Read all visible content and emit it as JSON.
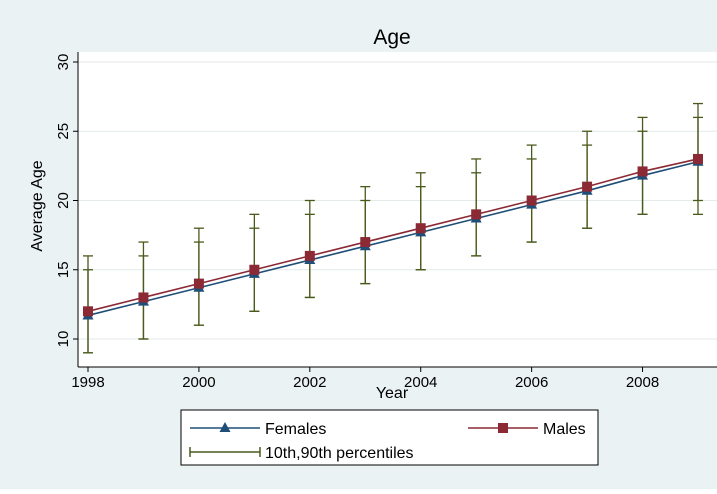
{
  "chart_data": {
    "type": "line",
    "title": "Age",
    "xlabel": "Year",
    "ylabel": "Average Age",
    "xlim": [
      1998,
      2009
    ],
    "ylim": [
      10,
      30
    ],
    "x": [
      1998,
      1999,
      2000,
      2001,
      2002,
      2003,
      2004,
      2005,
      2006,
      2007,
      2008,
      2009
    ],
    "x_ticks": [
      1998,
      2000,
      2002,
      2004,
      2006,
      2008
    ],
    "y_ticks": [
      10,
      15,
      20,
      25,
      30
    ],
    "grid": true,
    "legend_position": "bottom",
    "series": [
      {
        "name": "Females",
        "marker": "triangle",
        "color": "#1f4e79",
        "values": [
          11.7,
          12.7,
          13.7,
          14.7,
          15.7,
          16.7,
          17.7,
          18.7,
          19.7,
          20.7,
          21.8,
          22.8
        ],
        "p10": [
          9,
          10,
          11,
          12,
          13,
          14,
          15,
          16,
          17,
          18,
          19,
          19
        ],
        "p90": [
          15,
          16,
          17,
          18,
          19,
          20,
          21,
          22,
          23,
          24,
          25,
          26
        ]
      },
      {
        "name": "Males",
        "marker": "square",
        "color": "#8b2a35",
        "values": [
          12.0,
          13.0,
          14.0,
          15.0,
          16.0,
          17.0,
          18.0,
          19.0,
          20.0,
          21.0,
          22.1,
          23.0
        ],
        "p10": [
          9,
          10,
          11,
          12,
          13,
          14,
          15,
          16,
          17,
          18,
          19,
          20
        ],
        "p90": [
          16,
          17,
          18,
          19,
          20,
          21,
          22,
          23,
          24,
          25,
          26,
          27
        ]
      }
    ],
    "errorbar_legend": "10th,90th percentiles",
    "errorbar_color": "#4a5a1c"
  }
}
